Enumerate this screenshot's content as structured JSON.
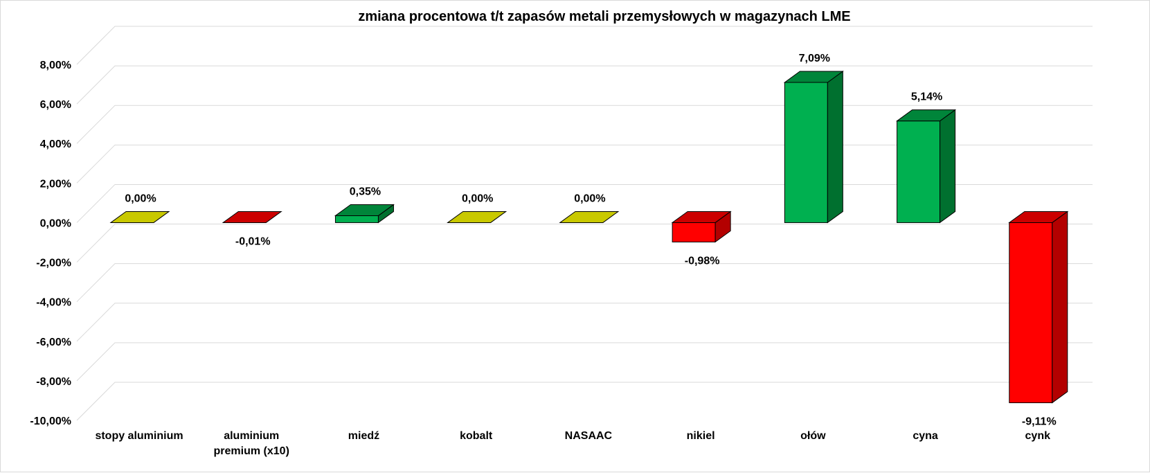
{
  "chart_data": {
    "type": "bar",
    "title": "zmiana procentowa t/t zapasów metali przemysłowych w magazynach LME",
    "categories": [
      [
        "stopy aluminium"
      ],
      [
        "aluminium",
        "premium (x10)"
      ],
      [
        "miedź"
      ],
      [
        "kobalt"
      ],
      [
        "NASAAC"
      ],
      [
        "nikiel"
      ],
      [
        "ołów"
      ],
      [
        "cyna"
      ],
      [
        "cynk"
      ]
    ],
    "values": [
      0.0,
      -0.01,
      0.35,
      0.0,
      0.0,
      -0.98,
      7.09,
      5.14,
      -9.11
    ],
    "data_labels": [
      "0,00%",
      "-0,01%",
      "0,35%",
      "0,00%",
      "0,00%",
      "-0,98%",
      "7,09%",
      "5,14%",
      "-9,11%"
    ],
    "ylim": [
      -10,
      8
    ],
    "yticks": [
      8,
      6,
      4,
      2,
      0,
      -2,
      -4,
      -6,
      -8,
      -10
    ],
    "ytick_labels": [
      "8,00%",
      "6,00%",
      "4,00%",
      "2,00%",
      "0,00%",
      "-2,00%",
      "-4,00%",
      "-6,00%",
      "-8,00%",
      "-10,00%"
    ],
    "grid": true,
    "legend": "none",
    "xlabel": "",
    "ylabel": "",
    "colors": {
      "positive_front": "#00b050",
      "positive_side": "#00702f",
      "positive_top": "#00853a",
      "negative_front": "#ff0000",
      "negative_side": "#b30000",
      "negative_top": "#cc0000",
      "zero_top": "#c9c900",
      "grid": "#d9d9d9"
    }
  }
}
